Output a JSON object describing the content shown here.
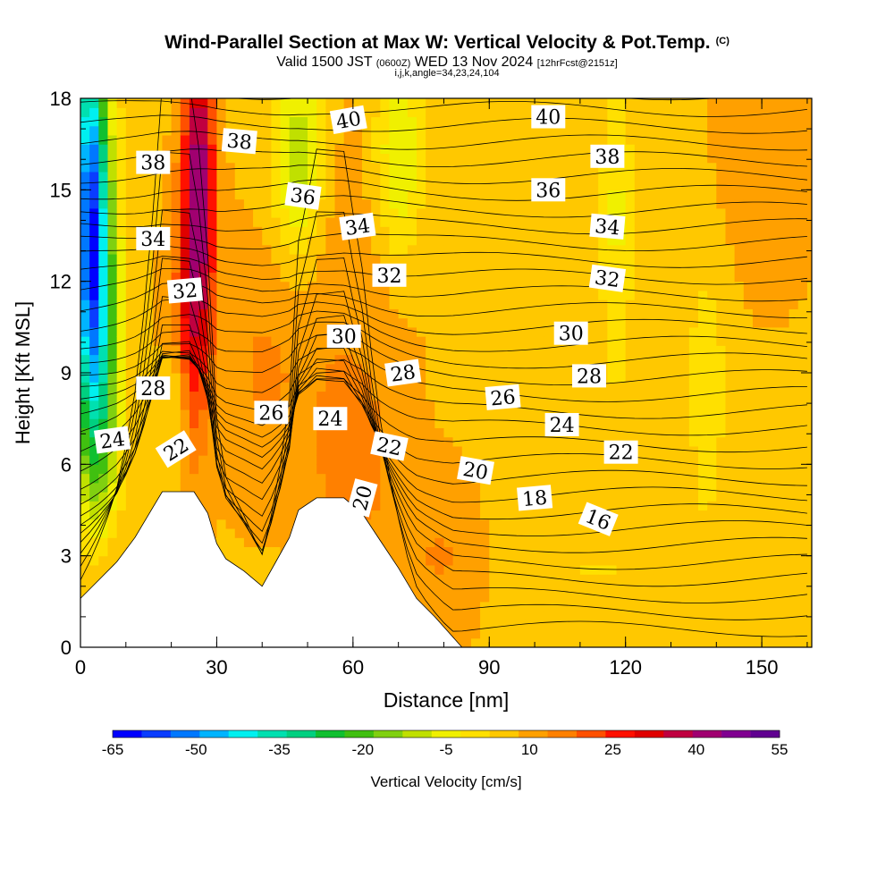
{
  "title": {
    "main": "Wind-Parallel Section at Max W: Vertical Velocity & Pot.Temp.",
    "copyright": "(C)",
    "valid_prefix": "Valid 1500 JST",
    "valid_utc": "(0600Z)",
    "valid_date": "WED 13 Nov 2024",
    "forecast": "[12hrFcst@2151z]",
    "indices": "i,j,k,angle=34,23,24,104"
  },
  "chart_data": {
    "type": "heatmap",
    "xlabel": "Distance [nm]",
    "ylabel": "Height [Kft MSL]",
    "xlim": [
      0,
      161
    ],
    "ylim": [
      0,
      18
    ],
    "x_ticks": [
      0,
      30,
      60,
      90,
      120,
      150
    ],
    "y_ticks": [
      0,
      3,
      6,
      9,
      12,
      15,
      18
    ],
    "colorbar": {
      "label": "Vertical Velocity [cm/s]",
      "tick_labels": [
        "-65",
        "-50",
        "-35",
        "-20",
        "-5",
        "10",
        "25",
        "40",
        "55"
      ],
      "colors": [
        "#0000ff",
        "#0a3cff",
        "#0078ff",
        "#00b4ff",
        "#00f0f0",
        "#00e0b0",
        "#00d080",
        "#10c030",
        "#40c010",
        "#80d010",
        "#c0e000",
        "#f0f000",
        "#ffe000",
        "#ffc800",
        "#ffa000",
        "#ff8000",
        "#ff5000",
        "#ff1000",
        "#e00000",
        "#c00040",
        "#a00070",
        "#800090",
        "#600090"
      ]
    },
    "terrain_top_kft": [
      [
        0,
        1.6
      ],
      [
        4,
        2.2
      ],
      [
        8,
        2.8
      ],
      [
        12,
        3.6
      ],
      [
        16,
        4.6
      ],
      [
        18,
        5.1
      ],
      [
        25,
        5.1
      ],
      [
        28,
        4.4
      ],
      [
        30,
        3.4
      ],
      [
        32,
        2.9
      ],
      [
        36,
        2.5
      ],
      [
        40,
        2.0
      ],
      [
        43,
        2.8
      ],
      [
        46,
        3.6
      ],
      [
        48,
        4.5
      ],
      [
        52,
        4.9
      ],
      [
        58,
        4.9
      ],
      [
        62,
        4.4
      ],
      [
        66,
        3.5
      ],
      [
        70,
        2.6
      ],
      [
        74,
        1.6
      ],
      [
        78,
        1.0
      ],
      [
        81,
        0.5
      ],
      [
        84,
        0.0
      ]
    ],
    "isentrope_labels": [
      {
        "text": "40",
        "x": 59,
        "y": 17.3,
        "angle": -10
      },
      {
        "text": "40",
        "x": 103,
        "y": 17.4,
        "angle": 0
      },
      {
        "text": "38",
        "x": 35,
        "y": 16.6,
        "angle": 5
      },
      {
        "text": "38",
        "x": 16,
        "y": 15.9,
        "angle": 0
      },
      {
        "text": "38",
        "x": 116,
        "y": 16.1,
        "angle": 0
      },
      {
        "text": "36",
        "x": 49,
        "y": 14.8,
        "angle": 8
      },
      {
        "text": "36",
        "x": 103,
        "y": 15.0,
        "angle": 0
      },
      {
        "text": "34",
        "x": 16,
        "y": 13.4,
        "angle": 0
      },
      {
        "text": "34",
        "x": 61,
        "y": 13.8,
        "angle": -8
      },
      {
        "text": "34",
        "x": 116,
        "y": 13.8,
        "angle": 5
      },
      {
        "text": "32",
        "x": 23,
        "y": 11.7,
        "angle": -5
      },
      {
        "text": "32",
        "x": 68,
        "y": 12.2,
        "angle": 0
      },
      {
        "text": "32",
        "x": 116,
        "y": 12.1,
        "angle": 8
      },
      {
        "text": "30",
        "x": 58,
        "y": 10.2,
        "angle": 0
      },
      {
        "text": "30",
        "x": 108,
        "y": 10.3,
        "angle": 0
      },
      {
        "text": "28",
        "x": 16,
        "y": 8.5,
        "angle": 0
      },
      {
        "text": "28",
        "x": 71,
        "y": 9.0,
        "angle": -8
      },
      {
        "text": "28",
        "x": 112,
        "y": 8.9,
        "angle": 0
      },
      {
        "text": "26",
        "x": 42,
        "y": 7.7,
        "angle": 0
      },
      {
        "text": "26",
        "x": 93,
        "y": 8.2,
        "angle": -5
      },
      {
        "text": "24",
        "x": 7,
        "y": 6.8,
        "angle": -8
      },
      {
        "text": "24",
        "x": 55,
        "y": 7.5,
        "angle": 0
      },
      {
        "text": "24",
        "x": 106,
        "y": 7.3,
        "angle": 0
      },
      {
        "text": "22",
        "x": 21,
        "y": 6.5,
        "angle": -32
      },
      {
        "text": "22",
        "x": 68,
        "y": 6.6,
        "angle": 12
      },
      {
        "text": "22",
        "x": 119,
        "y": 6.4,
        "angle": 0
      },
      {
        "text": "20",
        "x": 87,
        "y": 5.8,
        "angle": 10
      },
      {
        "text": "20",
        "x": 62,
        "y": 4.9,
        "angle": -75
      },
      {
        "text": "18",
        "x": 100,
        "y": 4.9,
        "angle": -5
      },
      {
        "text": "16",
        "x": 114,
        "y": 4.2,
        "angle": 22
      }
    ]
  }
}
